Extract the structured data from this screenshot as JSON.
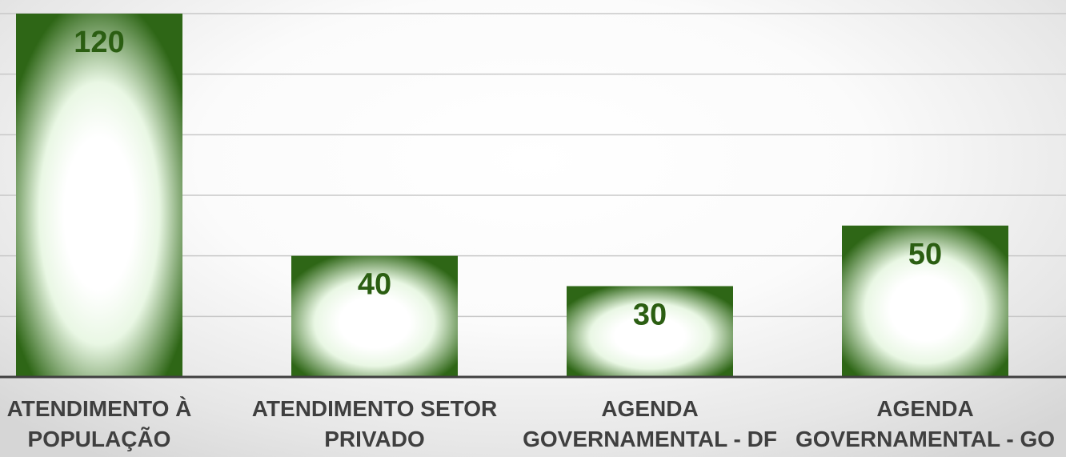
{
  "chart_data": {
    "type": "bar",
    "categories": [
      "ATENDIMENTO À\nPOPULAÇÃO",
      "ATENDIMENTO SETOR\nPRIVADO",
      "AGENDA\nGOVERNAMENTAL - DF",
      "AGENDA\nGOVERNAMENTAL - GO"
    ],
    "values": [
      120,
      40,
      30,
      50
    ],
    "data_labels": [
      "120",
      "40",
      "30",
      "50"
    ],
    "ylim": [
      0,
      120
    ],
    "y_gridline_step": 20,
    "grid": true,
    "legend": "none",
    "colors": {
      "bar_edge": "#2e6616",
      "bar_center": "#ffffff",
      "bar_mid": "#e9f7e4",
      "value_text": "#2b5e12",
      "category_text": "#3f3f3f",
      "gridline": "#c8c8c8",
      "axis": "#404040"
    }
  }
}
